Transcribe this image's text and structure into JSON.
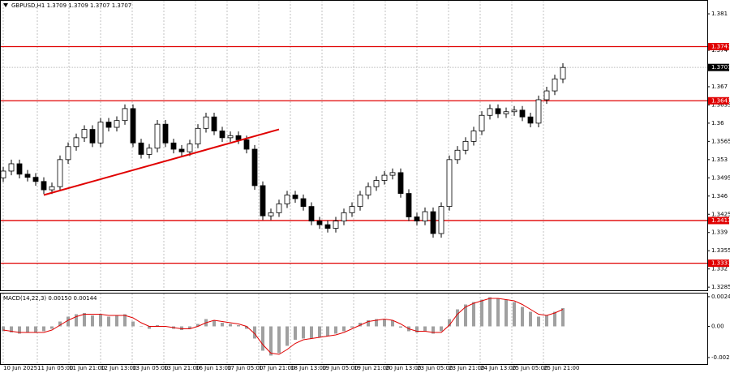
{
  "chart_data": {
    "type": "candlestick",
    "title": "GBPUSD,H1  1.3709 1.3709 1.3707 1.3707",
    "candles": [
      [
        1.3495,
        1.3516,
        1.3487,
        1.3508
      ],
      [
        1.3508,
        1.353,
        1.35,
        1.3522
      ],
      [
        1.3522,
        1.353,
        1.3494,
        1.3502
      ],
      [
        1.3502,
        1.351,
        1.3488,
        1.3496
      ],
      [
        1.3496,
        1.3504,
        1.348,
        1.3488
      ],
      [
        1.3488,
        1.3496,
        1.3464,
        1.3472
      ],
      [
        1.3472,
        1.3486,
        1.3464,
        1.3478
      ],
      [
        1.3478,
        1.3538,
        1.347,
        1.353
      ],
      [
        1.353,
        1.3563,
        1.3522,
        1.3555
      ],
      [
        1.3555,
        1.358,
        1.3547,
        1.3572
      ],
      [
        1.3572,
        1.3596,
        1.3564,
        1.3588
      ],
      [
        1.3588,
        1.3596,
        1.3554,
        1.3562
      ],
      [
        1.3562,
        1.361,
        1.3554,
        1.3602
      ],
      [
        1.3602,
        1.361,
        1.3584,
        1.3592
      ],
      [
        1.3592,
        1.3613,
        1.3584,
        1.3605
      ],
      [
        1.3605,
        1.3636,
        1.3597,
        1.3628
      ],
      [
        1.3628,
        1.3636,
        1.3554,
        1.3562
      ],
      [
        1.3562,
        1.357,
        1.3532,
        1.354
      ],
      [
        1.354,
        1.356,
        1.3532,
        1.3552
      ],
      [
        1.3552,
        1.3606,
        1.3544,
        1.3598
      ],
      [
        1.3598,
        1.3606,
        1.3554,
        1.3562
      ],
      [
        1.3562,
        1.357,
        1.3542,
        1.355
      ],
      [
        1.355,
        1.3558,
        1.3537,
        1.3545
      ],
      [
        1.3545,
        1.3568,
        1.3537,
        1.356
      ],
      [
        1.356,
        1.3598,
        1.3552,
        1.359
      ],
      [
        1.359,
        1.362,
        1.3582,
        1.3612
      ],
      [
        1.3612,
        1.362,
        1.3577,
        1.3585
      ],
      [
        1.3585,
        1.3593,
        1.3564,
        1.3572
      ],
      [
        1.3572,
        1.3584,
        1.3564,
        1.3576
      ],
      [
        1.3576,
        1.3584,
        1.356,
        1.3568
      ],
      [
        1.3568,
        1.3576,
        1.3542,
        1.355
      ],
      [
        1.355,
        1.3558,
        1.3472,
        1.348
      ],
      [
        1.348,
        1.3488,
        1.3414,
        1.3422
      ],
      [
        1.3422,
        1.3436,
        1.3414,
        1.3428
      ],
      [
        1.3428,
        1.3453,
        1.342,
        1.3445
      ],
      [
        1.3445,
        1.347,
        1.3437,
        1.3462
      ],
      [
        1.3462,
        1.347,
        1.3447,
        1.3455
      ],
      [
        1.3455,
        1.3463,
        1.3432,
        1.344
      ],
      [
        1.344,
        1.3448,
        1.3404,
        1.3412
      ],
      [
        1.3412,
        1.342,
        1.3397,
        1.3405
      ],
      [
        1.3405,
        1.3413,
        1.339,
        1.3398
      ],
      [
        1.3398,
        1.342,
        1.339,
        1.3412
      ],
      [
        1.3412,
        1.3436,
        1.3404,
        1.3428
      ],
      [
        1.3428,
        1.3448,
        1.342,
        1.344
      ],
      [
        1.344,
        1.347,
        1.3432,
        1.3462
      ],
      [
        1.3462,
        1.3486,
        1.3454,
        1.3478
      ],
      [
        1.3478,
        1.3498,
        1.347,
        1.349
      ],
      [
        1.349,
        1.3508,
        1.3482,
        1.35
      ],
      [
        1.35,
        1.3513,
        1.3492,
        1.3505
      ],
      [
        1.3505,
        1.3513,
        1.3457,
        1.3465
      ],
      [
        1.3465,
        1.3473,
        1.3412,
        1.342
      ],
      [
        1.342,
        1.3428,
        1.3404,
        1.3412
      ],
      [
        1.3412,
        1.3438,
        1.3404,
        1.343
      ],
      [
        1.343,
        1.3438,
        1.338,
        1.3388
      ],
      [
        1.3388,
        1.3448,
        1.338,
        1.344
      ],
      [
        1.344,
        1.3538,
        1.3432,
        1.353
      ],
      [
        1.353,
        1.3556,
        1.3522,
        1.3548
      ],
      [
        1.3548,
        1.3573,
        1.354,
        1.3565
      ],
      [
        1.3565,
        1.3593,
        1.3557,
        1.3585
      ],
      [
        1.3585,
        1.3623,
        1.3577,
        1.3615
      ],
      [
        1.3615,
        1.3636,
        1.3607,
        1.3628
      ],
      [
        1.3628,
        1.3636,
        1.361,
        1.3618
      ],
      [
        1.3618,
        1.363,
        1.361,
        1.3622
      ],
      [
        1.3622,
        1.3633,
        1.3614,
        1.3625
      ],
      [
        1.3625,
        1.3633,
        1.3604,
        1.3612
      ],
      [
        1.3612,
        1.362,
        1.3592,
        1.36
      ],
      [
        1.36,
        1.3653,
        1.3592,
        1.3645
      ],
      [
        1.3645,
        1.367,
        1.3637,
        1.3662
      ],
      [
        1.3662,
        1.3693,
        1.3654,
        1.3685
      ],
      [
        1.3685,
        1.3715,
        1.3677,
        1.3707
      ]
    ],
    "ylim": [
      1.3279,
      1.3835
    ],
    "yticks": [
      1.381,
      1.374,
      1.367,
      1.3635,
      1.36,
      1.3565,
      1.353,
      1.3495,
      1.346,
      1.3425,
      1.339,
      1.3355,
      1.332,
      1.3285
    ],
    "levels": [
      1.3747,
      1.3643,
      1.3413,
      1.3331
    ],
    "level_color": "#e00000",
    "current_price": 1.3707,
    "trendline": {
      "start": [
        5,
        1.3462
      ],
      "end": [
        34,
        1.3588
      ]
    },
    "xlabels": [
      {
        "value": 0,
        "label": "10 Jun 2025"
      },
      {
        "value": 4.2,
        "label": "11 Jun 05:00"
      },
      {
        "value": 8.1,
        "label": "11 Jun 21:00"
      },
      {
        "value": 12,
        "label": "12 Jun 13:00"
      },
      {
        "value": 15.9,
        "label": "13 Jun 05:00"
      },
      {
        "value": 19.8,
        "label": "13 Jun 21:00"
      },
      {
        "value": 23.7,
        "label": "16 Jun 13:00"
      },
      {
        "value": 27.6,
        "label": "17 Jun 05:00"
      },
      {
        "value": 31.5,
        "label": "17 Jun 21:00"
      },
      {
        "value": 35.4,
        "label": "18 Jun 13:00"
      },
      {
        "value": 39.3,
        "label": "19 Jun 05:00"
      },
      {
        "value": 43.2,
        "label": "19 Jun 21:00"
      },
      {
        "value": 47.1,
        "label": "20 Jun 13:00"
      },
      {
        "value": 51,
        "label": "23 Jun 05:00"
      },
      {
        "value": 54.9,
        "label": "23 Jun 21:00"
      },
      {
        "value": 58.8,
        "label": "24 Jun 13:00"
      },
      {
        "value": 62.7,
        "label": "25 Jun 05:00"
      },
      {
        "value": 66.6,
        "label": "25 Jun 21:00"
      }
    ],
    "macd": {
      "label": "MACD(14,22,3) 0.00150 0.00144",
      "histogram": [
        -0.0004,
        -0.0005,
        -0.0006,
        -0.0005,
        -0.0005,
        -0.0004,
        -0.0002,
        0.0004,
        0.0008,
        0.001,
        0.0011,
        0.0009,
        0.001,
        0.0008,
        0.0009,
        0.001,
        0.0004,
        0,
        -0.0002,
        0.0001,
        0,
        -0.0002,
        -0.0003,
        -0.0002,
        0.0002,
        0.0006,
        0.0005,
        0.0003,
        0.0002,
        0.0001,
        -0.0002,
        -0.001,
        -0.002,
        -0.0024,
        -0.0022,
        -0.0016,
        -0.0011,
        -0.001,
        -0.001,
        -0.0009,
        -0.0008,
        -0.0006,
        -0.0004,
        -0.0001,
        0.0003,
        0.0005,
        0.0006,
        0.0006,
        0.0005,
        -0.0001,
        -0.0004,
        -0.0005,
        -0.0004,
        -0.0006,
        -0.0004,
        0.0006,
        0.0014,
        0.0018,
        0.002,
        0.0022,
        0.0024,
        0.0023,
        0.0022,
        0.002,
        0.0016,
        0.0012,
        0.0008,
        0.0009,
        0.0012,
        0.0015
      ],
      "signal": [
        -0.0003,
        -0.0004,
        -0.0005,
        -0.0005,
        -0.0005,
        -0.0005,
        -0.0003,
        0.0001,
        0.0005,
        0.0008,
        0.001,
        0.001,
        0.001,
        0.0009,
        0.0009,
        0.0009,
        0.0007,
        0.0003,
        0,
        0,
        0,
        -0.0001,
        -0.0002,
        -0.0002,
        0,
        0.0003,
        0.0005,
        0.0004,
        0.0003,
        0.0002,
        0,
        -0.0006,
        -0.0015,
        -0.0022,
        -0.0023,
        -0.0019,
        -0.0014,
        -0.0011,
        -0.001,
        -0.0009,
        -0.0008,
        -0.0007,
        -0.0005,
        -0.0002,
        0.0001,
        0.0004,
        0.0005,
        0.0006,
        0.0005,
        0.0002,
        -0.0002,
        -0.0004,
        -0.0004,
        -0.0005,
        -0.0005,
        0.0001,
        0.001,
        0.0016,
        0.0019,
        0.0021,
        0.0023,
        0.0023,
        0.0022,
        0.0021,
        0.0018,
        0.0014,
        0.001,
        0.0009,
        0.0011,
        0.0014
      ],
      "ylim": [
        -0.0031,
        0.0027
      ],
      "yticks": [
        0.00244,
        {
          "value": 0,
          "label": "0.00"
        },
        -0.00256
      ],
      "histogram_color": "#a0a0a0",
      "signal_color": "#e00000"
    }
  }
}
